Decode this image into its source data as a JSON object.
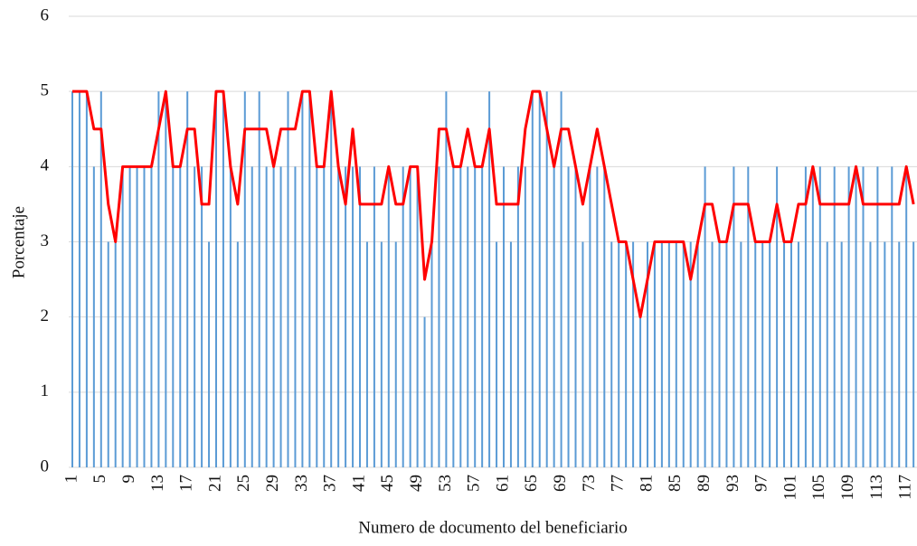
{
  "chart_data": {
    "type": "bar-line",
    "y_label": "Porcentaje",
    "x_label": "Numero de documento del beneficiario",
    "categories": [
      "1",
      null,
      null,
      null,
      "5",
      null,
      null,
      null,
      "9",
      null,
      null,
      null,
      "13",
      null,
      null,
      null,
      "17",
      null,
      null,
      null,
      "21",
      null,
      null,
      null,
      "25",
      null,
      null,
      null,
      "29",
      null,
      null,
      null,
      "33",
      null,
      null,
      null,
      "37",
      null,
      null,
      null,
      "41",
      null,
      null,
      null,
      "45",
      null,
      null,
      null,
      "49",
      null,
      null,
      null,
      "53",
      null,
      null,
      null,
      "57",
      null,
      null,
      null,
      "61",
      null,
      null,
      null,
      "65",
      null,
      null,
      null,
      "69",
      null,
      null,
      null,
      "73",
      null,
      null,
      null,
      "77",
      null,
      null,
      null,
      "81",
      null,
      null,
      null,
      "85",
      null,
      null,
      null,
      "89",
      null,
      null,
      null,
      "93",
      null,
      null,
      null,
      "97",
      null,
      null,
      null,
      "101",
      null,
      null,
      null,
      "105",
      null,
      null,
      null,
      "109",
      null,
      null,
      null,
      "113",
      null,
      null,
      null,
      "117",
      null
    ],
    "series": [
      {
        "kind": "bar",
        "color": "#5b9bd5",
        "values": [
          5,
          5,
          5,
          4,
          5,
          3,
          3,
          4,
          4,
          4,
          4,
          4,
          5,
          5,
          4,
          4,
          5,
          4,
          4,
          3,
          5,
          5,
          4,
          3,
          5,
          4,
          5,
          4,
          4,
          4,
          5,
          4,
          5,
          5,
          4,
          4,
          5,
          4,
          4,
          4,
          4,
          3,
          4,
          3,
          4,
          3,
          4,
          4,
          4,
          2,
          3,
          4,
          5,
          4,
          4,
          4,
          4,
          4,
          5,
          3,
          4,
          3,
          4,
          4,
          5,
          5,
          5,
          4,
          5,
          4,
          4,
          3,
          4,
          4,
          4,
          3,
          3,
          3,
          3,
          2,
          3,
          3,
          3,
          3,
          3,
          3,
          3,
          3,
          4,
          3,
          3,
          3,
          4,
          3,
          4,
          3,
          3,
          3,
          4,
          3,
          3,
          3,
          4,
          4,
          4,
          3,
          4,
          3,
          4,
          4,
          4,
          3,
          4,
          3,
          4,
          3,
          4,
          3
        ]
      },
      {
        "kind": "line",
        "color": "#ff0000",
        "values": [
          5,
          5,
          5,
          4.5,
          4.5,
          3.5,
          3,
          4,
          4,
          4,
          4,
          4,
          4.5,
          5,
          4,
          4,
          4.5,
          4.5,
          3.5,
          3.5,
          5,
          5,
          4,
          3.5,
          4.5,
          4.5,
          4.5,
          4.5,
          4,
          4.5,
          4.5,
          4.5,
          5,
          5,
          4,
          4,
          5,
          4,
          3.5,
          4.5,
          3.5,
          3.5,
          3.5,
          3.5,
          4,
          3.5,
          3.5,
          4,
          4,
          2.5,
          3,
          4.5,
          4.5,
          4,
          4,
          4.5,
          4,
          4,
          4.5,
          3.5,
          3.5,
          3.5,
          3.5,
          4.5,
          5,
          5,
          4.5,
          4,
          4.5,
          4.5,
          4,
          3.5,
          4,
          4.5,
          4,
          3.5,
          3,
          3,
          2.5,
          2,
          2.5,
          3,
          3,
          3,
          3,
          3,
          2.5,
          3,
          3.5,
          3.5,
          3,
          3,
          3.5,
          3.5,
          3.5,
          3,
          3,
          3,
          3.5,
          3,
          3,
          3.5,
          3.5,
          4,
          3.5,
          3.5,
          3.5,
          3.5,
          3.5,
          4,
          3.5,
          3.5,
          3.5,
          3.5,
          3.5,
          3.5,
          4,
          3.5
        ]
      }
    ],
    "ylim": [
      0,
      6
    ],
    "yticks": [
      0,
      1,
      2,
      3,
      4,
      5,
      6
    ],
    "grid": true
  }
}
